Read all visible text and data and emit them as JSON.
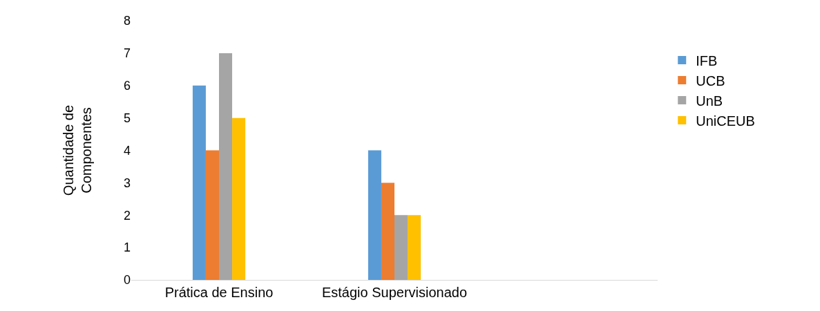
{
  "chart_data": {
    "type": "bar",
    "ylabel": "Quantidade de\nComponentes",
    "categories": [
      "Prática de Ensino",
      "Estágio Supervisionado",
      null
    ],
    "series": [
      {
        "name": "IFB",
        "color": "#5b9bd5",
        "values": [
          6,
          4,
          null
        ]
      },
      {
        "name": "UCB",
        "color": "#ed7d31",
        "values": [
          4,
          3,
          null
        ]
      },
      {
        "name": "UnB",
        "color": "#a5a5a5",
        "values": [
          7,
          2,
          null
        ]
      },
      {
        "name": "UniCEUB",
        "color": "#ffc000",
        "values": [
          5,
          2,
          null
        ]
      }
    ],
    "ylim": [
      0,
      8
    ],
    "yticks": [
      0,
      1,
      2,
      3,
      4,
      5,
      6,
      7,
      8
    ],
    "legend": "right"
  }
}
